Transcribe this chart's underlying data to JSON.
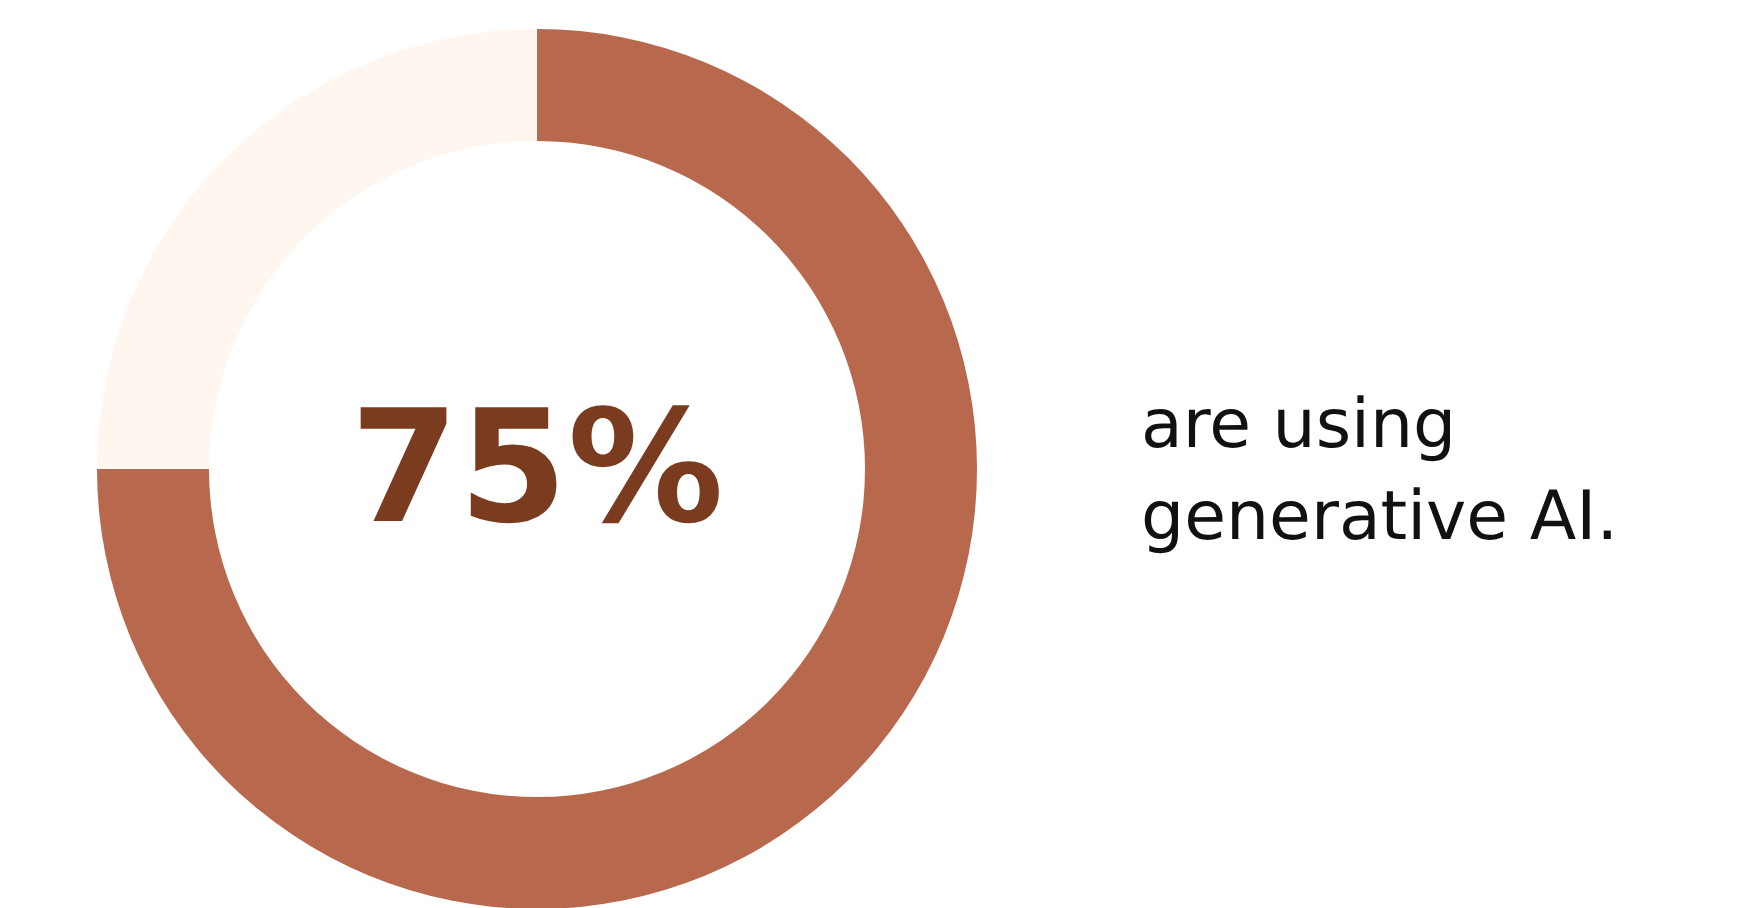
{
  "chart_data": {
    "type": "donut",
    "categories": [
      null,
      null
    ],
    "values": [
      75,
      25
    ],
    "colors": [
      "#b8684c",
      "#fff6f0"
    ],
    "annotations": [
      "75%",
      "are using generative AI."
    ]
  }
}
